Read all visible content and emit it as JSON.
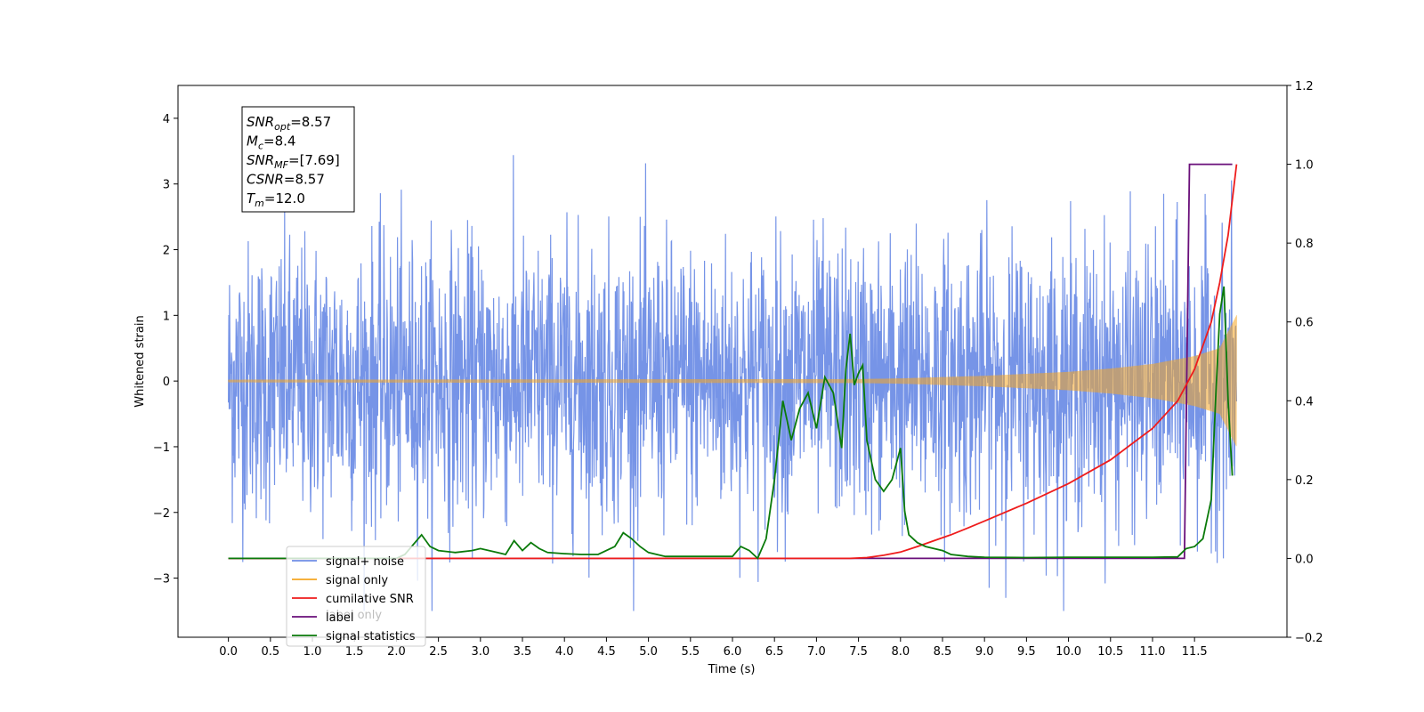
{
  "chart_data": {
    "type": "line",
    "xlabel": "Time (s)",
    "ylabel_left": "Whitened strain",
    "ylabel_right": "",
    "xlim": [
      -0.6,
      12.6
    ],
    "ylim_left": [
      -3.9,
      4.5
    ],
    "ylim_right": [
      -0.2,
      1.2
    ],
    "x_ticks": [
      0.0,
      0.5,
      1.0,
      1.5,
      2.0,
      2.5,
      3.0,
      3.5,
      4.0,
      4.5,
      5.0,
      5.5,
      6.0,
      6.5,
      7.0,
      7.5,
      8.0,
      8.5,
      9.0,
      9.5,
      10.0,
      10.5,
      11.0,
      11.5
    ],
    "x_tick_labels": [
      "0.0",
      "0.5",
      "1.0",
      "1.5",
      "2.0",
      "2.5",
      "3.0",
      "3.5",
      "4.0",
      "4.5",
      "5.0",
      "5.5",
      "6.0",
      "6.5",
      "7.0",
      "7.5",
      "8.0",
      "8.5",
      "9.0",
      "9.5",
      "10.0",
      "10.5",
      "11.0",
      "11.5"
    ],
    "y_ticks_left": [
      -3,
      -2,
      -1,
      0,
      1,
      2,
      3,
      4
    ],
    "y_tick_labels_left": [
      "−3",
      "−2",
      "−1",
      "0",
      "1",
      "2",
      "3",
      "4"
    ],
    "y_ticks_right": [
      -0.2,
      0.0,
      0.2,
      0.4,
      0.6,
      0.8,
      1.0,
      1.2
    ],
    "y_tick_labels_right": [
      "−0.2",
      "0.0",
      "0.2",
      "0.4",
      "0.6",
      "0.8",
      "1.0",
      "1.2"
    ],
    "grid": false,
    "legend_position": "lower-left",
    "series": [
      {
        "name": "signal+ noise",
        "axis": "left",
        "color": "#6f8ee6",
        "description_values": "white noise approx. N(0,1) clipped near ±3.5 over 0–12 s with embedded chirp",
        "x_range": [
          0.0,
          12.0
        ],
        "noise_sigma": 1.0
      },
      {
        "name": "signal only",
        "axis": "left",
        "color": "#f5a623",
        "envelope": {
          "x": [
            0.0,
            7.5,
            8.0,
            9.0,
            10.0,
            10.5,
            11.0,
            11.5,
            11.8,
            12.0
          ],
          "amplitude": [
            0.02,
            0.03,
            0.04,
            0.08,
            0.14,
            0.19,
            0.26,
            0.38,
            0.5,
            1.0
          ]
        }
      },
      {
        "name": "cumilative SNR",
        "axis": "right",
        "color": "#ee1c1c",
        "x": [
          0.0,
          7.4,
          7.6,
          7.8,
          8.0,
          8.2,
          8.4,
          8.6,
          8.8,
          9.0,
          9.5,
          10.0,
          10.5,
          11.0,
          11.3,
          11.5,
          11.7,
          11.8,
          11.9,
          12.0
        ],
        "values": [
          0.0,
          0.0,
          0.002,
          0.008,
          0.016,
          0.03,
          0.045,
          0.06,
          0.077,
          0.095,
          0.14,
          0.19,
          0.25,
          0.33,
          0.4,
          0.48,
          0.6,
          0.7,
          0.82,
          1.0
        ]
      },
      {
        "name": "label",
        "axis": "right",
        "color": "#6a0f7a",
        "x": [
          0.0,
          11.38,
          11.44,
          11.95
        ],
        "values": [
          0.0,
          0.0,
          1.0,
          1.0
        ]
      },
      {
        "name": "signal statistics",
        "axis": "right",
        "color": "#0a7a0a",
        "x": [
          0.0,
          2.0,
          2.1,
          2.2,
          2.3,
          2.4,
          2.5,
          2.7,
          2.9,
          3.0,
          3.2,
          3.3,
          3.4,
          3.5,
          3.6,
          3.7,
          3.8,
          4.0,
          4.2,
          4.4,
          4.6,
          4.7,
          4.8,
          4.9,
          5.0,
          5.2,
          5.5,
          5.8,
          6.0,
          6.1,
          6.2,
          6.3,
          6.4,
          6.5,
          6.6,
          6.7,
          6.8,
          6.9,
          7.0,
          7.1,
          7.2,
          7.3,
          7.35,
          7.4,
          7.45,
          7.5,
          7.55,
          7.6,
          7.7,
          7.8,
          7.9,
          8.0,
          8.05,
          8.1,
          8.2,
          8.3,
          8.4,
          8.5,
          8.6,
          8.8,
          9.0,
          9.5,
          10.0,
          10.5,
          11.0,
          11.3,
          11.4,
          11.5,
          11.6,
          11.7,
          11.75,
          11.8,
          11.85,
          11.9,
          11.95
        ],
        "values": [
          0.0,
          0.0,
          0.01,
          0.035,
          0.06,
          0.03,
          0.02,
          0.015,
          0.02,
          0.025,
          0.015,
          0.01,
          0.045,
          0.02,
          0.04,
          0.025,
          0.015,
          0.012,
          0.01,
          0.01,
          0.03,
          0.065,
          0.05,
          0.03,
          0.015,
          0.005,
          0.005,
          0.005,
          0.005,
          0.03,
          0.02,
          0.0,
          0.05,
          0.2,
          0.4,
          0.3,
          0.38,
          0.42,
          0.33,
          0.46,
          0.42,
          0.28,
          0.48,
          0.57,
          0.44,
          0.47,
          0.49,
          0.3,
          0.2,
          0.17,
          0.2,
          0.28,
          0.12,
          0.06,
          0.04,
          0.03,
          0.025,
          0.02,
          0.01,
          0.005,
          0.003,
          0.002,
          0.003,
          0.003,
          0.003,
          0.004,
          0.025,
          0.03,
          0.05,
          0.15,
          0.4,
          0.62,
          0.69,
          0.4,
          0.21
        ]
      }
    ],
    "legend": [
      "signal+ noise",
      "signal only",
      "cumilative SNR",
      "label",
      "signal statistics"
    ],
    "legend_hidden_text": "label only",
    "annotation_box": {
      "lines": [
        {
          "base": "SNR",
          "sub": "opt",
          "value": "=8.57"
        },
        {
          "base": "M",
          "sub": "c",
          "value": "=8.4"
        },
        {
          "base": "SNR",
          "sub": "MF",
          "value": "=[7.69]"
        },
        {
          "base": "CSNR",
          "sub": "",
          "value": "=8.57"
        },
        {
          "base": "T",
          "sub": "m",
          "value": "=12.0"
        }
      ]
    }
  }
}
